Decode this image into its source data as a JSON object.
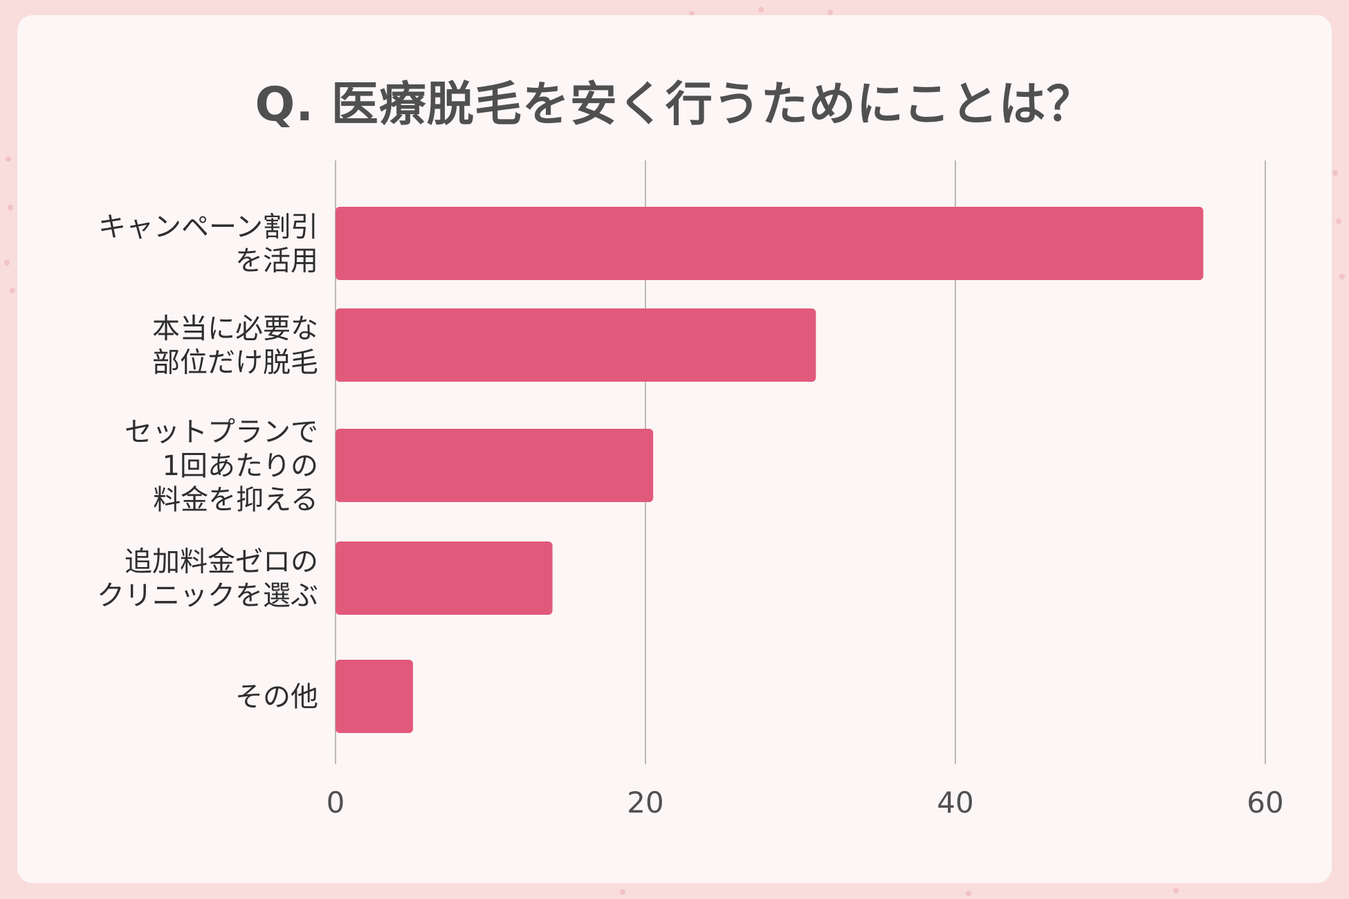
{
  "title": "Q. 医療脱毛を安く行うためにことは？",
  "chart_data": {
    "type": "bar",
    "orientation": "horizontal",
    "title": "Q. 医療脱毛を安く行うためにことは？",
    "categories": [
      [
        "キャンペーン割引",
        "を活用"
      ],
      [
        "本当に必要な",
        "部位だけ脱毛"
      ],
      [
        "セットプランで",
        "1回あたりの",
        "料金を抑える"
      ],
      [
        "追加料金ゼロの",
        "クリニックを選ぶ"
      ],
      [
        "その他"
      ]
    ],
    "values": [
      56,
      31,
      20.5,
      14,
      5
    ],
    "xlim": [
      0,
      60
    ],
    "xticks": [
      0,
      20,
      40,
      60
    ],
    "grid": true,
    "bar_color": "#e15a7b",
    "grid_color": "#b9b9b9"
  }
}
